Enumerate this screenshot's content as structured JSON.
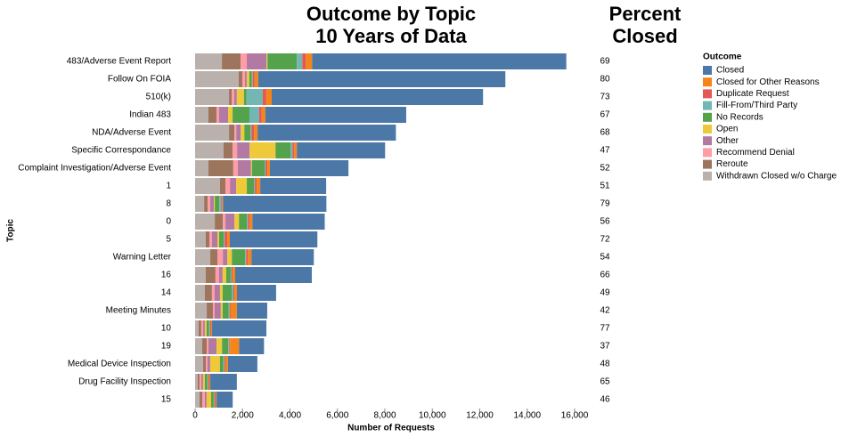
{
  "chart_data": {
    "type": "stacked-bar-horizontal",
    "title": [
      "Outcome by Topic",
      "10 Years of Data"
    ],
    "x_label": "Number of Requests",
    "y_label": "Topic",
    "legend_title": "Outcome",
    "percent_title": [
      "Percent",
      "Closed"
    ],
    "categories": [
      "483/Adverse Event Report",
      "Follow On FOIA",
      "510(k)",
      "Indian 483",
      "NDA/Adverse Event",
      "Specific Correspondance",
      "Complaint Investigation/Adverse Event",
      "1",
      "8",
      "0",
      "5",
      "Warning Letter",
      "16",
      "14",
      "Meeting Minutes",
      "10",
      "19",
      "Medical Device Inspection",
      "Drug Facility Inspection",
      "15"
    ],
    "percent_closed": [
      69,
      80,
      73,
      67,
      68,
      47,
      52,
      51,
      79,
      56,
      72,
      54,
      66,
      49,
      42,
      77,
      37,
      48,
      65,
      46
    ],
    "series": [
      {
        "name": "Closed",
        "color": "#4c78a8",
        "values": [
          10720,
          10420,
          8910,
          5940,
          5830,
          3720,
          3310,
          2780,
          4360,
          3050,
          3690,
          2630,
          3230,
          1650,
          1280,
          2290,
          1050,
          1240,
          1120,
          680
        ]
      },
      {
        "name": "Closed for Other Reasons",
        "color": "#f58518",
        "values": [
          260,
          150,
          230,
          150,
          150,
          110,
          110,
          150,
          40,
          110,
          110,
          150,
          110,
          110,
          260,
          40,
          380,
          110,
          40,
          40
        ]
      },
      {
        "name": "Duplicate Request",
        "color": "#e45756",
        "values": [
          150,
          75,
          150,
          110,
          110,
          75,
          75,
          75,
          40,
          75,
          110,
          75,
          40,
          40,
          40,
          40,
          40,
          40,
          40,
          40
        ]
      },
      {
        "name": "Fill-From/Third Party",
        "color": "#72b7b2",
        "values": [
          230,
          40,
          680,
          410,
          40,
          75,
          40,
          40,
          75,
          40,
          40,
          40,
          40,
          75,
          40,
          40,
          40,
          40,
          40,
          40
        ]
      },
      {
        "name": "No Records",
        "color": "#54a24b",
        "values": [
          1240,
          110,
          110,
          710,
          260,
          640,
          530,
          300,
          190,
          340,
          190,
          560,
          190,
          380,
          260,
          110,
          260,
          150,
          110,
          110
        ]
      },
      {
        "name": "Open",
        "color": "#eeca3b",
        "values": [
          40,
          110,
          300,
          190,
          150,
          1090,
          40,
          450,
          40,
          190,
          75,
          190,
          150,
          110,
          75,
          75,
          230,
          410,
          75,
          190
        ]
      },
      {
        "name": "Other",
        "color": "#b279a2",
        "values": [
          830,
          75,
          110,
          380,
          190,
          530,
          560,
          260,
          150,
          380,
          230,
          190,
          150,
          230,
          260,
          75,
          340,
          110,
          75,
          75
        ]
      },
      {
        "name": "Recommend Denial",
        "color": "#ff9da6",
        "values": [
          260,
          110,
          110,
          110,
          75,
          190,
          190,
          190,
          110,
          110,
          110,
          230,
          150,
          110,
          75,
          75,
          75,
          75,
          75,
          110
        ]
      },
      {
        "name": "Reroute",
        "color": "#9d755d",
        "values": [
          790,
          150,
          110,
          340,
          230,
          380,
          1050,
          230,
          150,
          340,
          150,
          300,
          410,
          300,
          260,
          110,
          190,
          110,
          75,
          110
        ]
      },
      {
        "name": "Withdrawn Closed w/o Charge",
        "color": "#bab0ac",
        "values": [
          1130,
          1840,
          1430,
          560,
          1430,
          1200,
          560,
          1050,
          380,
          830,
          450,
          640,
          450,
          410,
          490,
          150,
          300,
          340,
          110,
          190
        ]
      }
    ],
    "xlim": [
      0,
      16000
    ],
    "xticks": [
      0,
      {
        "value": 2000,
        "label": "2,000"
      },
      {
        "value": 4000,
        "label": "4,000"
      },
      {
        "value": 6000,
        "label": "6,000"
      },
      {
        "value": 8000,
        "label": "8,000"
      },
      {
        "value": 10000,
        "label": "10,000"
      },
      {
        "value": 12000,
        "label": "12,000"
      },
      {
        "value": 14000,
        "label": "14,000"
      },
      {
        "value": 16000,
        "label": "16,000"
      }
    ],
    "grid": false,
    "legend": "right"
  }
}
